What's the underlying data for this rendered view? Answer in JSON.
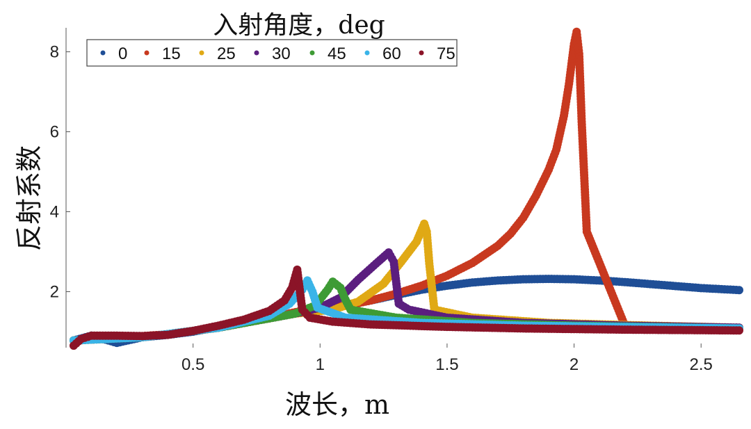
{
  "chart_data": {
    "type": "scatter",
    "title": "入射角度，deg",
    "xlabel": "波长，m",
    "ylabel": "反射系数",
    "xlim": [
      0.0,
      2.65
    ],
    "ylim": [
      0.6,
      8.6
    ],
    "xticks": [
      0.5,
      1,
      1.5,
      2,
      2.5
    ],
    "xtick_labels": [
      "0.5",
      "1",
      "1.5",
      "2",
      "2.5"
    ],
    "yticks": [
      2,
      4,
      6,
      8
    ],
    "ytick_labels": [
      "2",
      "4",
      "6",
      "8"
    ],
    "grid": false,
    "legend_position": "top-left, horizontal",
    "series": [
      {
        "name": "0",
        "color": "#1F4E96",
        "points": [
          [
            0.03,
            0.78
          ],
          [
            0.1,
            0.9
          ],
          [
            0.2,
            0.72
          ],
          [
            0.3,
            0.86
          ],
          [
            0.4,
            0.92
          ],
          [
            0.5,
            1.0
          ],
          [
            0.6,
            1.12
          ],
          [
            0.7,
            1.24
          ],
          [
            0.8,
            1.36
          ],
          [
            0.9,
            1.46
          ],
          [
            1.0,
            1.56
          ],
          [
            1.1,
            1.66
          ],
          [
            1.2,
            1.78
          ],
          [
            1.3,
            1.92
          ],
          [
            1.4,
            2.05
          ],
          [
            1.5,
            2.15
          ],
          [
            1.6,
            2.23
          ],
          [
            1.7,
            2.28
          ],
          [
            1.8,
            2.31
          ],
          [
            1.9,
            2.32
          ],
          [
            2.0,
            2.31
          ],
          [
            2.1,
            2.28
          ],
          [
            2.2,
            2.24
          ],
          [
            2.3,
            2.19
          ],
          [
            2.4,
            2.14
          ],
          [
            2.5,
            2.09
          ],
          [
            2.65,
            2.04
          ]
        ]
      },
      {
        "name": "15",
        "color": "#C8391F",
        "points": [
          [
            0.03,
            0.78
          ],
          [
            0.2,
            0.85
          ],
          [
            0.4,
            0.93
          ],
          [
            0.6,
            1.1
          ],
          [
            0.8,
            1.35
          ],
          [
            0.95,
            1.55
          ],
          [
            1.1,
            1.65
          ],
          [
            1.2,
            1.78
          ],
          [
            1.3,
            1.95
          ],
          [
            1.4,
            2.15
          ],
          [
            1.5,
            2.4
          ],
          [
            1.6,
            2.72
          ],
          [
            1.7,
            3.15
          ],
          [
            1.75,
            3.45
          ],
          [
            1.8,
            3.85
          ],
          [
            1.85,
            4.4
          ],
          [
            1.9,
            5.05
          ],
          [
            1.93,
            5.55
          ],
          [
            1.96,
            6.4
          ],
          [
            1.98,
            7.2
          ],
          [
            1.99,
            7.7
          ],
          [
            2.0,
            8.2
          ],
          [
            2.01,
            8.5
          ],
          [
            2.02,
            7.95
          ],
          [
            2.03,
            6.25
          ],
          [
            2.05,
            3.5
          ],
          [
            2.2,
            1.15
          ],
          [
            2.4,
            1.1
          ],
          [
            2.65,
            1.06
          ]
        ]
      },
      {
        "name": "25",
        "color": "#E0A915",
        "points": [
          [
            0.03,
            0.78
          ],
          [
            0.3,
            0.86
          ],
          [
            0.6,
            1.1
          ],
          [
            0.9,
            1.45
          ],
          [
            1.05,
            1.55
          ],
          [
            1.15,
            1.75
          ],
          [
            1.25,
            2.2
          ],
          [
            1.32,
            2.75
          ],
          [
            1.38,
            3.25
          ],
          [
            1.41,
            3.7
          ],
          [
            1.42,
            3.5
          ],
          [
            1.43,
            2.7
          ],
          [
            1.45,
            1.55
          ],
          [
            1.6,
            1.35
          ],
          [
            1.9,
            1.22
          ],
          [
            2.3,
            1.15
          ],
          [
            2.65,
            1.1
          ]
        ]
      },
      {
        "name": "30",
        "color": "#5B1E7F",
        "points": [
          [
            0.03,
            0.78
          ],
          [
            0.3,
            0.86
          ],
          [
            0.6,
            1.1
          ],
          [
            0.9,
            1.45
          ],
          [
            1.0,
            1.6
          ],
          [
            1.08,
            1.85
          ],
          [
            1.15,
            2.3
          ],
          [
            1.22,
            2.7
          ],
          [
            1.27,
            2.98
          ],
          [
            1.29,
            2.75
          ],
          [
            1.31,
            1.7
          ],
          [
            1.35,
            1.55
          ],
          [
            1.5,
            1.35
          ],
          [
            1.8,
            1.22
          ],
          [
            2.2,
            1.15
          ],
          [
            2.65,
            1.1
          ]
        ]
      },
      {
        "name": "45",
        "color": "#3E9B35",
        "points": [
          [
            0.03,
            0.78
          ],
          [
            0.3,
            0.86
          ],
          [
            0.6,
            1.1
          ],
          [
            0.9,
            1.45
          ],
          [
            0.98,
            1.65
          ],
          [
            1.03,
            2.05
          ],
          [
            1.05,
            2.25
          ],
          [
            1.08,
            2.1
          ],
          [
            1.1,
            1.8
          ],
          [
            1.12,
            1.55
          ],
          [
            1.3,
            1.35
          ],
          [
            1.6,
            1.22
          ],
          [
            2.0,
            1.15
          ],
          [
            2.65,
            1.08
          ]
        ]
      },
      {
        "name": "60",
        "color": "#3AB4E8",
        "points": [
          [
            0.03,
            0.78
          ],
          [
            0.3,
            0.86
          ],
          [
            0.6,
            1.1
          ],
          [
            0.8,
            1.4
          ],
          [
            0.88,
            1.7
          ],
          [
            0.93,
            2.05
          ],
          [
            0.95,
            2.28
          ],
          [
            0.97,
            2.0
          ],
          [
            0.99,
            1.6
          ],
          [
            1.1,
            1.35
          ],
          [
            1.4,
            1.22
          ],
          [
            1.8,
            1.15
          ],
          [
            2.65,
            1.08
          ]
        ]
      },
      {
        "name": "75",
        "color": "#8B1428",
        "points": [
          [
            0.03,
            0.65
          ],
          [
            0.06,
            0.82
          ],
          [
            0.1,
            0.9
          ],
          [
            0.2,
            0.9
          ],
          [
            0.3,
            0.89
          ],
          [
            0.4,
            0.92
          ],
          [
            0.5,
            1.02
          ],
          [
            0.6,
            1.15
          ],
          [
            0.7,
            1.3
          ],
          [
            0.8,
            1.52
          ],
          [
            0.86,
            1.78
          ],
          [
            0.89,
            2.1
          ],
          [
            0.91,
            2.55
          ],
          [
            0.93,
            1.55
          ],
          [
            0.96,
            1.35
          ],
          [
            1.05,
            1.25
          ],
          [
            1.2,
            1.18
          ],
          [
            1.5,
            1.12
          ],
          [
            1.8,
            1.08
          ],
          [
            2.2,
            1.05
          ],
          [
            2.65,
            1.03
          ]
        ]
      }
    ]
  }
}
